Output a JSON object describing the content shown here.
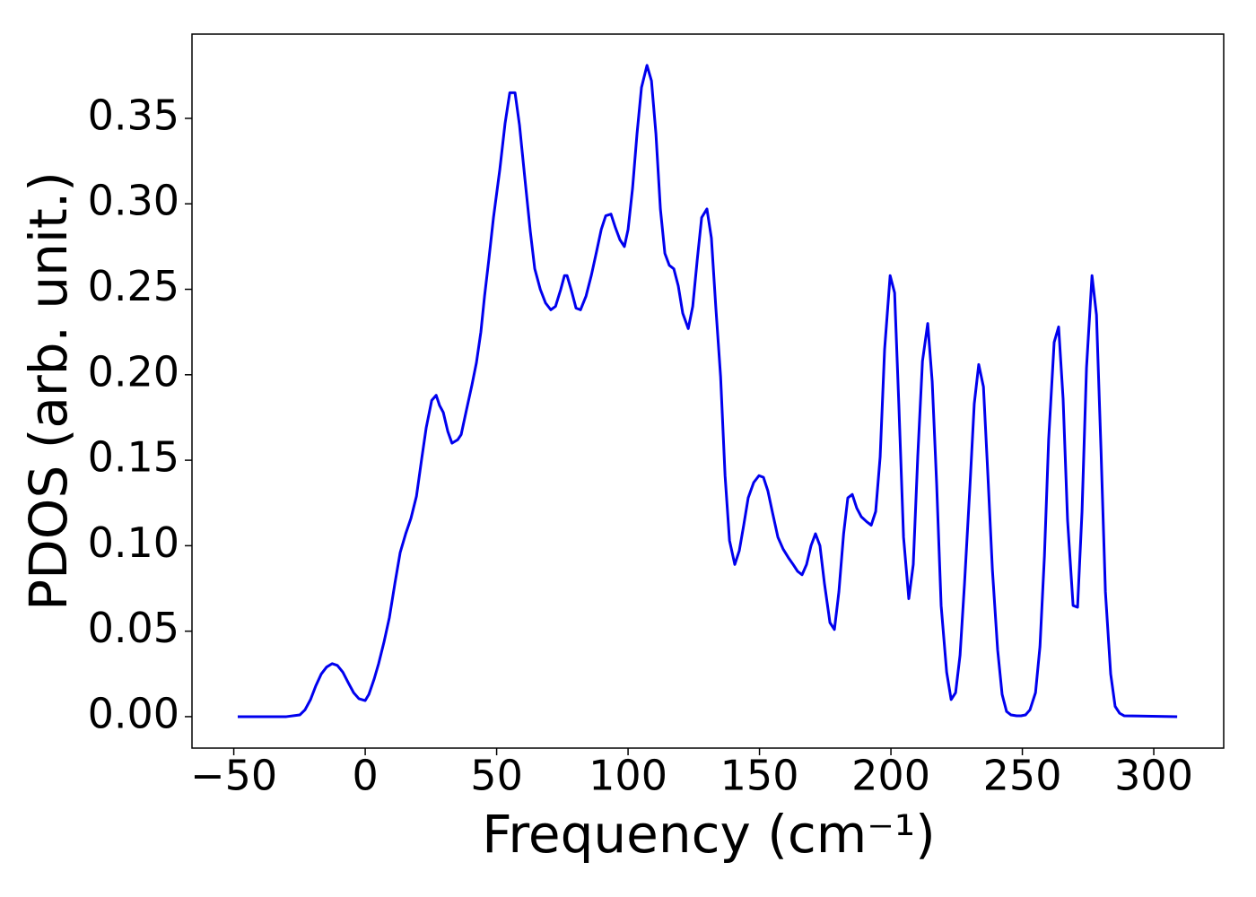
{
  "chart_data": {
    "type": "line",
    "xlabel": "Frequency (cm⁻¹)",
    "ylabel": "PDOS (arb. unit.)",
    "color": "#0000ee",
    "x": [
      -48.5,
      -30,
      -24.9,
      -22.9,
      -20.8,
      -18.8,
      -16.7,
      -14.7,
      -12.6,
      -10.6,
      -8.5,
      -6.5,
      -4.4,
      -2.4,
      0,
      1.4,
      3.4,
      5.1,
      7.2,
      9.2,
      11.3,
      13.3,
      15.4,
      17.4,
      19.5,
      21.5,
      23.2,
      25.3,
      27,
      28.3,
      29.7,
      31.4,
      33,
      35.2,
      36.5,
      38.6,
      40.6,
      42.3,
      44,
      45.4,
      47,
      48.8,
      51.2,
      53.2,
      55,
      57,
      58.7,
      60.8,
      62.8,
      64.5,
      66.6,
      68.6,
      70.6,
      72.4,
      74.4,
      75.8,
      76.8,
      78.5,
      80.2,
      81.9,
      84,
      86,
      88,
      89.8,
      91.5,
      93.5,
      95.2,
      96.9,
      98.6,
      100,
      101.7,
      103.4,
      105.1,
      107.2,
      108.9,
      110.6,
      112.3,
      114,
      115.7,
      117.4,
      119.1,
      120.8,
      122.9,
      124.6,
      126.3,
      128,
      130,
      131.7,
      133.4,
      135.2,
      136.9,
      138.6,
      140.6,
      142.3,
      144,
      145.7,
      147.8,
      149.8,
      151.5,
      153.2,
      155,
      157,
      159,
      161,
      162.8,
      164.5,
      166.2,
      167.9,
      169.6,
      171.3,
      173,
      174.7,
      176.8,
      178.5,
      180.2,
      182,
      183.6,
      185.3,
      187,
      188.7,
      190.8,
      192.5,
      194.2,
      195.9,
      197.6,
      199.7,
      201.4,
      203,
      204.8,
      206.8,
      208.5,
      210.2,
      212,
      214,
      215.7,
      217.4,
      219.1,
      221.2,
      222.9,
      224.6,
      226.3,
      228,
      230,
      231.7,
      233.4,
      235.2,
      236.9,
      238.6,
      240.6,
      242.3,
      244,
      245.7,
      247.8,
      249.5,
      251.2,
      252.9,
      255,
      256.7,
      258.4,
      260,
      262.1,
      263.8,
      265.5,
      267.2,
      269.3,
      271,
      272.7,
      274.4,
      276.5,
      278.2,
      279.9,
      281.6,
      283.6,
      285.3,
      287,
      288.7,
      308.9
    ],
    "values": [
      0,
      0,
      0.001,
      0.004,
      0.01,
      0.018,
      0.025,
      0.029,
      0.031,
      0.03,
      0.026,
      0.02,
      0.014,
      0.0105,
      0.0094,
      0.013,
      0.022,
      0.031,
      0.044,
      0.058,
      0.078,
      0.096,
      0.107,
      0.116,
      0.129,
      0.151,
      0.169,
      0.185,
      0.188,
      0.182,
      0.178,
      0.167,
      0.16,
      0.162,
      0.165,
      0.18,
      0.194,
      0.207,
      0.225,
      0.246,
      0.267,
      0.292,
      0.32,
      0.347,
      0.365,
      0.365,
      0.346,
      0.314,
      0.284,
      0.262,
      0.25,
      0.242,
      0.238,
      0.24,
      0.25,
      0.258,
      0.258,
      0.249,
      0.239,
      0.238,
      0.246,
      0.258,
      0.272,
      0.285,
      0.293,
      0.294,
      0.286,
      0.279,
      0.275,
      0.285,
      0.309,
      0.341,
      0.368,
      0.381,
      0.372,
      0.341,
      0.297,
      0.271,
      0.264,
      0.262,
      0.252,
      0.236,
      0.227,
      0.24,
      0.267,
      0.292,
      0.297,
      0.28,
      0.239,
      0.199,
      0.141,
      0.103,
      0.089,
      0.097,
      0.112,
      0.128,
      0.137,
      0.141,
      0.14,
      0.132,
      0.119,
      0.105,
      0.098,
      0.093,
      0.089,
      0.085,
      0.083,
      0.089,
      0.1,
      0.107,
      0.1,
      0.078,
      0.055,
      0.051,
      0.073,
      0.107,
      0.128,
      0.13,
      0.122,
      0.117,
      0.114,
      0.112,
      0.12,
      0.152,
      0.215,
      0.258,
      0.248,
      0.183,
      0.105,
      0.069,
      0.089,
      0.152,
      0.208,
      0.23,
      0.196,
      0.136,
      0.065,
      0.026,
      0.01,
      0.014,
      0.036,
      0.078,
      0.133,
      0.183,
      0.206,
      0.193,
      0.141,
      0.086,
      0.039,
      0.013,
      0.003,
      0.001,
      0.0005,
      0.0005,
      0.001,
      0.004,
      0.014,
      0.041,
      0.094,
      0.162,
      0.219,
      0.228,
      0.186,
      0.115,
      0.065,
      0.064,
      0.12,
      0.204,
      0.258,
      0.235,
      0.157,
      0.073,
      0.025,
      0.006,
      0.002,
      0.0005,
      0
    ],
    "xlim": [
      -65.9,
      326.6
    ],
    "ylim": [
      -0.0184,
      0.3993
    ],
    "xticks": [
      {
        "value": -50,
        "label": "−50"
      },
      0,
      50,
      100,
      150,
      200,
      250,
      300
    ],
    "yticks": [
      {
        "value": 0,
        "label": "0.00"
      },
      {
        "value": 0.05,
        "label": "0.05"
      },
      {
        "value": 0.1,
        "label": "0.10"
      },
      {
        "value": 0.15,
        "label": "0.15"
      },
      {
        "value": 0.2,
        "label": "0.20"
      },
      {
        "value": 0.25,
        "label": "0.25"
      },
      {
        "value": 0.3,
        "label": "0.30"
      },
      {
        "value": 0.35,
        "label": "0.35"
      }
    ],
    "grid": false
  }
}
